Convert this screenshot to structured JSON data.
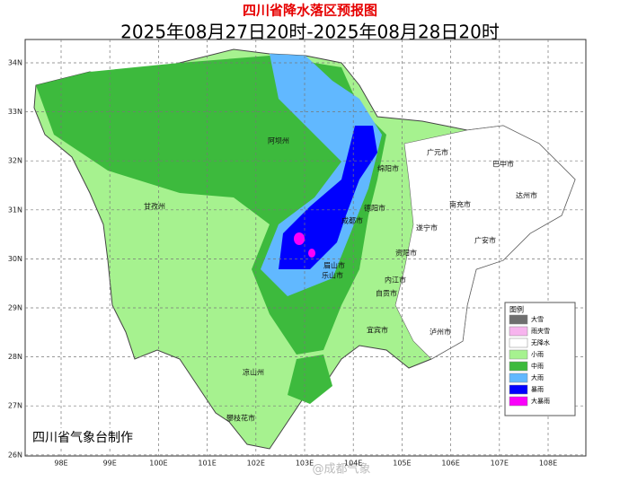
{
  "header": {
    "title": "四川省降水落区预报图",
    "subtitle": "2025年08月27日20时-2025年08月28日20时"
  },
  "axes": {
    "lon_labels": [
      "98E",
      "99E",
      "100E",
      "101E",
      "102E",
      "103E",
      "104E",
      "105E",
      "106E",
      "107E",
      "108E"
    ],
    "lat_labels": [
      "34N",
      "33N",
      "32N",
      "31N",
      "30N",
      "29N",
      "28N",
      "27N",
      "26N"
    ]
  },
  "cities": [
    "阿坝州",
    "甘孜州",
    "广元市",
    "巴中市",
    "绵阳市",
    "达州市",
    "南充市",
    "德阳市",
    "成都市",
    "遂宁市",
    "广安市",
    "眉山市",
    "资阳市",
    "乐山市",
    "内江市",
    "自贡市",
    "宜宾市",
    "泸州市",
    "凉山州",
    "攀枝花市"
  ],
  "legend": {
    "title": "图例",
    "items": [
      {
        "label": "大雪",
        "color": "#6e6e6e"
      },
      {
        "label": "雨夹雪",
        "color": "#f7b4ee"
      },
      {
        "label": "无降水",
        "color": "#ffffff"
      },
      {
        "label": "小雨",
        "color": "#a6f28f"
      },
      {
        "label": "中雨",
        "color": "#3dba3d"
      },
      {
        "label": "大雨",
        "color": "#61b8ff"
      },
      {
        "label": "暴雨",
        "color": "#0000fe"
      },
      {
        "label": "大暴雨",
        "color": "#fa00fa"
      }
    ]
  },
  "footer": "四川省气象台制作",
  "watermark": "@成都气象"
}
